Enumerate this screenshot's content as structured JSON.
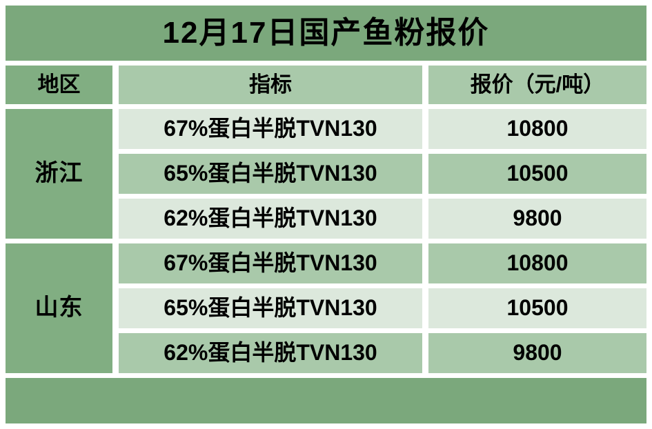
{
  "chart_data": {
    "type": "table",
    "title": "12月17日国产鱼粉报价",
    "columns": [
      "地区",
      "指标",
      "报价（元/吨）"
    ],
    "regions": [
      {
        "name": "浙江",
        "rows": [
          {
            "indicator": "67%蛋白半脱TVN130",
            "price": "10800"
          },
          {
            "indicator": "65%蛋白半脱TVN130",
            "price": "10500"
          },
          {
            "indicator": "62%蛋白半脱TVN130",
            "price": "9800"
          }
        ]
      },
      {
        "name": "山东",
        "rows": [
          {
            "indicator": "67%蛋白半脱TVN130",
            "price": "10800"
          },
          {
            "indicator": "65%蛋白半脱TVN130",
            "price": "10500"
          },
          {
            "indicator": "62%蛋白半脱TVN130",
            "price": "9800"
          }
        ]
      }
    ]
  },
  "colors": {
    "title_bar_green": "#7ba87c",
    "region_column_green": "#81ae82",
    "row_medium_green": "#a9c9aa",
    "row_light_green": "#dce8dc",
    "background": "#ffffff",
    "text": "#000000"
  }
}
